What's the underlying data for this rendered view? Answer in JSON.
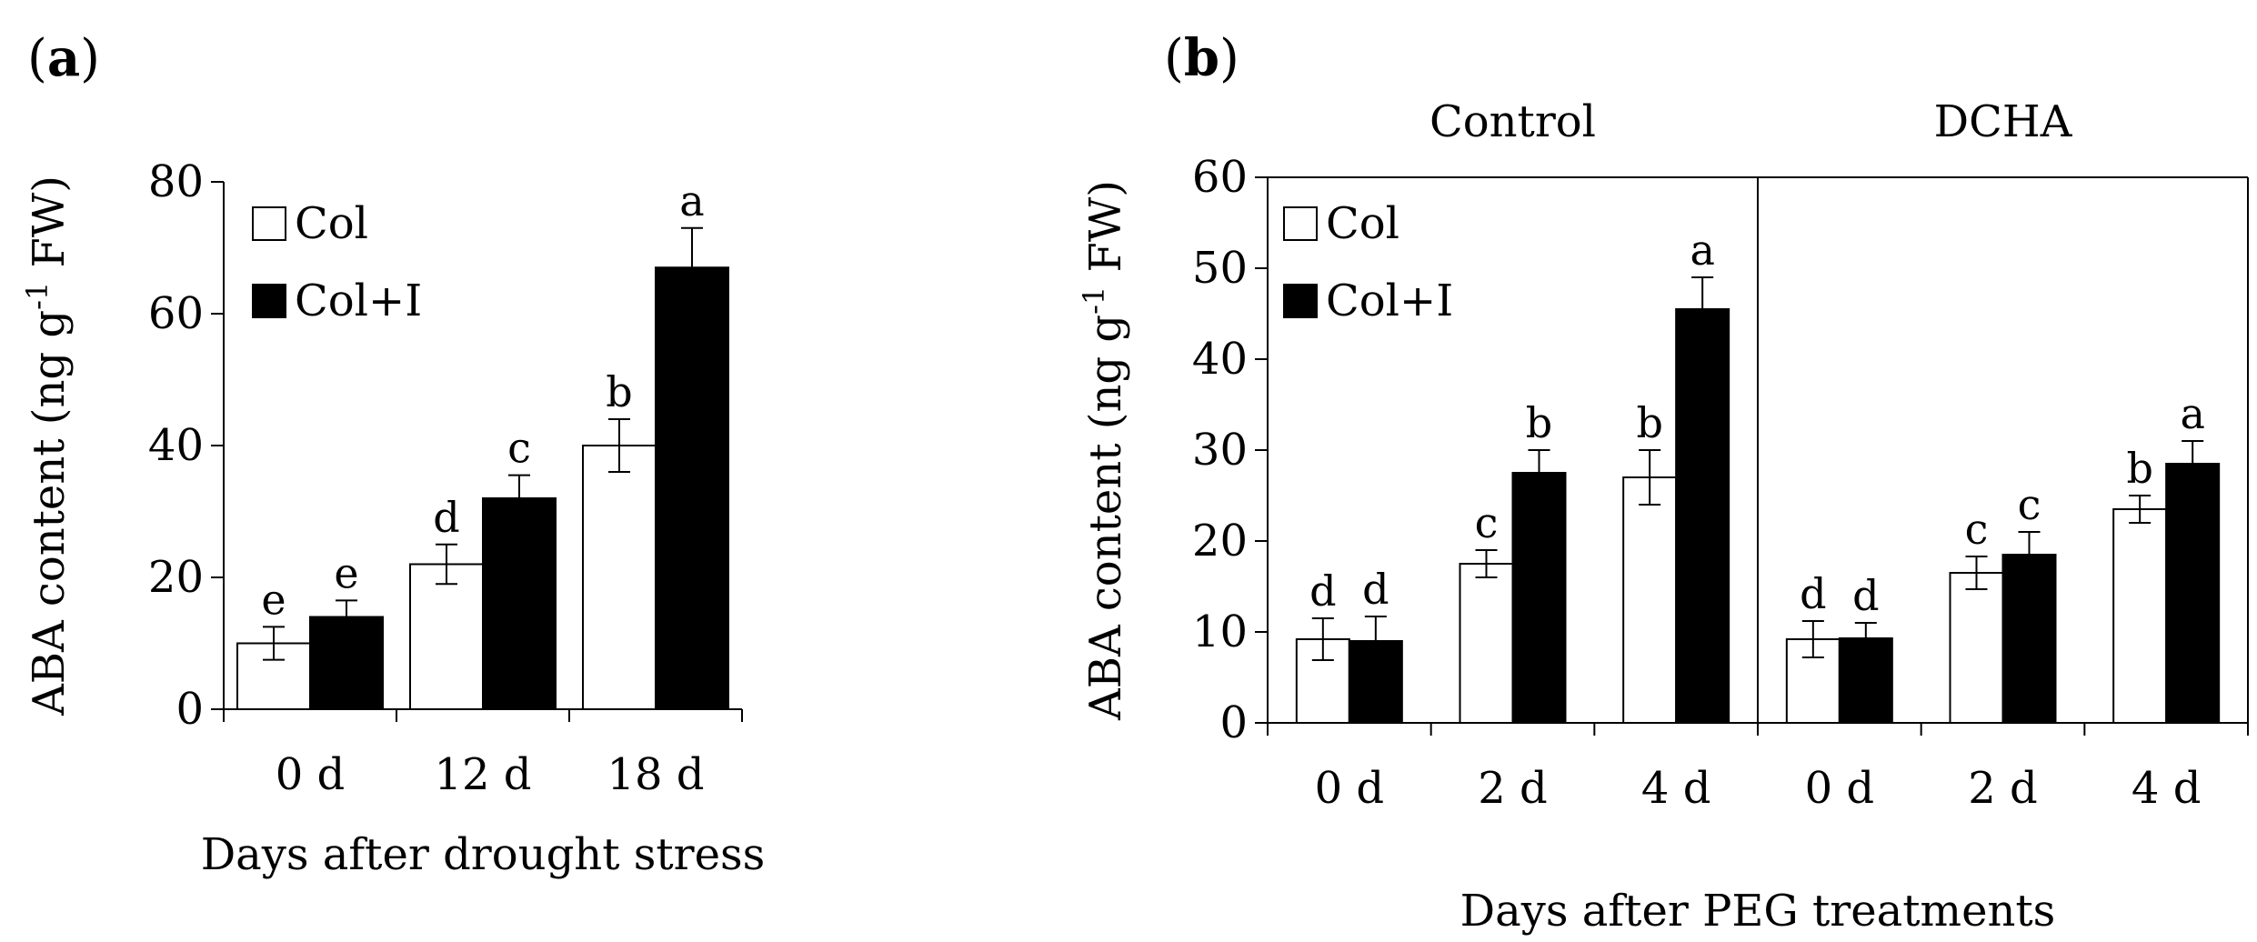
{
  "chart_data": [
    {
      "panel": "(a)",
      "panel_letter": "a",
      "type": "bar",
      "categories": [
        "0 d",
        "12 d",
        "18 d"
      ],
      "series": [
        {
          "name": "Col",
          "color": "#ffffff",
          "values": [
            10,
            22,
            40
          ],
          "errors": [
            2.5,
            3,
            4
          ],
          "letters": [
            "e",
            "d",
            "b"
          ]
        },
        {
          "name": "Col+I",
          "color": "#000000",
          "values": [
            14,
            32,
            67
          ],
          "errors": [
            2.5,
            3.5,
            6
          ],
          "letters": [
            "e",
            "c",
            "a"
          ]
        }
      ],
      "xlabel": "Days after drought stress",
      "ylabel": "ABA content (ng g-1 FW)",
      "ylim": [
        0,
        80
      ],
      "yticks": [
        0,
        20,
        40,
        60,
        80
      ]
    },
    {
      "panel": "(b)",
      "panel_letter": "b",
      "type": "bar",
      "groups": [
        "Control",
        "DCHA"
      ],
      "categories": [
        "0 d",
        "2 d",
        "4 d",
        "0 d",
        "2 d",
        "4 d"
      ],
      "series": [
        {
          "name": "Col",
          "color": "#ffffff",
          "values": [
            9.2,
            17.5,
            27,
            9.2,
            16.5,
            23.5
          ],
          "errors": [
            2.3,
            1.5,
            3,
            2,
            1.8,
            1.5
          ],
          "letters": [
            "d",
            "c",
            "b",
            "d",
            "c",
            "b"
          ]
        },
        {
          "name": "Col+I",
          "color": "#000000",
          "values": [
            9,
            27.5,
            45.5,
            9.3,
            18.5,
            28.5
          ],
          "errors": [
            2.7,
            2.5,
            3.5,
            1.7,
            2.5,
            2.5
          ],
          "letters": [
            "d",
            "b",
            "a",
            "d",
            "c",
            "a"
          ]
        }
      ],
      "xlabel": "Days after PEG treatments",
      "ylabel": "ABA content (ng g-1 FW)",
      "ylim": [
        0,
        60
      ],
      "yticks": [
        0,
        10,
        20,
        30,
        40,
        50,
        60
      ]
    }
  ]
}
